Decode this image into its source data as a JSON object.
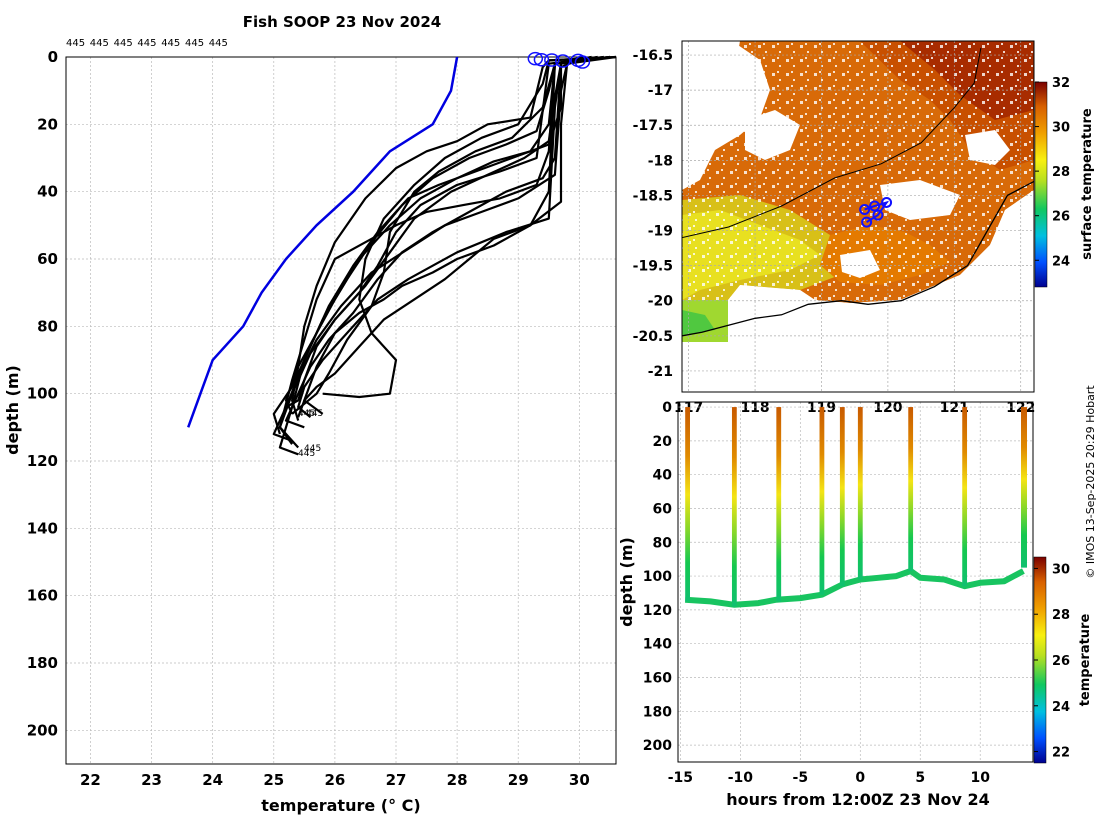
{
  "chart_data": [
    {
      "type": "line",
      "title": "Fish SOOP 23 Nov 2024",
      "xlabel": "temperature (° C)",
      "ylabel": "depth (m)",
      "xlim": [
        21.6,
        30.6
      ],
      "ylim": [
        210,
        0
      ],
      "xticks": [
        22,
        23,
        24,
        25,
        26,
        27,
        28,
        29,
        30
      ],
      "yticks": [
        0,
        20,
        40,
        60,
        80,
        100,
        120,
        140,
        160,
        180,
        200
      ],
      "grid": true,
      "top_labels": [
        "445",
        "445",
        "445",
        "445",
        "445",
        "445",
        "445"
      ],
      "profile_end_labels": [
        "445",
        "445",
        "445",
        "445"
      ],
      "reference_profile": {
        "color": "#0000e0",
        "points": [
          [
            28.0,
            0
          ],
          [
            27.9,
            10
          ],
          [
            27.6,
            20
          ],
          [
            26.9,
            28
          ],
          [
            26.3,
            40
          ],
          [
            25.7,
            50
          ],
          [
            25.2,
            60
          ],
          [
            24.8,
            70
          ],
          [
            24.5,
            80
          ],
          [
            24.0,
            90
          ],
          [
            23.8,
            100
          ],
          [
            23.6,
            110
          ]
        ]
      },
      "surface_markers": [
        [
          29.28,
          0.5
        ],
        [
          29.38,
          0.8
        ],
        [
          29.55,
          0.9
        ],
        [
          29.73,
          1.2
        ],
        [
          29.98,
          1.0
        ],
        [
          30.05,
          1.5
        ]
      ],
      "profiles": [
        [
          [
            30.6,
            0
          ],
          [
            29.5,
            1
          ],
          [
            29.4,
            3
          ],
          [
            29.2,
            18
          ],
          [
            28.5,
            20
          ],
          [
            28.0,
            25
          ],
          [
            27.5,
            28
          ],
          [
            27.0,
            33
          ],
          [
            26.5,
            42
          ],
          [
            26.0,
            55
          ],
          [
            25.7,
            68
          ],
          [
            25.5,
            80
          ],
          [
            25.4,
            92
          ],
          [
            25.3,
            102
          ],
          [
            25.4,
            108
          ]
        ],
        [
          [
            30.5,
            0
          ],
          [
            29.6,
            2
          ],
          [
            29.5,
            10
          ],
          [
            29.3,
            22
          ],
          [
            28.8,
            26
          ],
          [
            28.2,
            30
          ],
          [
            27.6,
            36
          ],
          [
            27.1,
            44
          ],
          [
            26.6,
            55
          ],
          [
            26.2,
            66
          ],
          [
            25.8,
            78
          ],
          [
            25.5,
            90
          ],
          [
            25.3,
            104
          ],
          [
            25.1,
            116
          ],
          [
            25.4,
            118
          ]
        ],
        [
          [
            30.4,
            0
          ],
          [
            29.7,
            2
          ],
          [
            29.6,
            12
          ],
          [
            29.5,
            25
          ],
          [
            29.1,
            30
          ],
          [
            28.5,
            35
          ],
          [
            27.9,
            40
          ],
          [
            27.3,
            48
          ],
          [
            26.9,
            58
          ],
          [
            26.5,
            68
          ],
          [
            26.0,
            78
          ],
          [
            25.6,
            88
          ],
          [
            25.3,
            100
          ],
          [
            25.1,
            110
          ],
          [
            25.3,
            115
          ]
        ],
        [
          [
            30.3,
            0
          ],
          [
            29.8,
            2
          ],
          [
            29.7,
            10
          ],
          [
            29.6,
            35
          ],
          [
            29.0,
            42
          ],
          [
            28.4,
            46
          ],
          [
            27.8,
            50
          ],
          [
            27.2,
            57
          ],
          [
            26.6,
            64
          ],
          [
            26.1,
            74
          ],
          [
            25.7,
            84
          ],
          [
            25.4,
            95
          ],
          [
            25.2,
            104
          ],
          [
            25.0,
            112
          ],
          [
            25.3,
            114
          ]
        ],
        [
          [
            30.2,
            0
          ],
          [
            29.7,
            2
          ],
          [
            29.6,
            15
          ],
          [
            29.5,
            48
          ],
          [
            28.8,
            52
          ],
          [
            28.0,
            58
          ],
          [
            27.6,
            62
          ],
          [
            27.2,
            66
          ],
          [
            26.7,
            72
          ],
          [
            26.3,
            80
          ],
          [
            25.8,
            90
          ],
          [
            25.5,
            98
          ],
          [
            25.4,
            104
          ],
          [
            25.6,
            107
          ]
        ],
        [
          [
            30.1,
            0
          ],
          [
            29.6,
            2
          ],
          [
            29.5,
            20
          ],
          [
            29.2,
            28
          ],
          [
            28.6,
            31
          ],
          [
            28.0,
            36
          ],
          [
            27.4,
            42
          ],
          [
            26.9,
            50
          ],
          [
            26.4,
            60
          ],
          [
            26.0,
            72
          ],
          [
            25.7,
            82
          ],
          [
            25.4,
            92
          ],
          [
            25.2,
            102
          ],
          [
            25.3,
            106
          ]
        ],
        [
          [
            30.6,
            0
          ],
          [
            29.5,
            1
          ],
          [
            29.4,
            8
          ],
          [
            29.0,
            20
          ],
          [
            28.4,
            24
          ],
          [
            27.8,
            30
          ],
          [
            27.3,
            38
          ],
          [
            26.8,
            48
          ],
          [
            26.5,
            60
          ],
          [
            26.4,
            72
          ],
          [
            26.6,
            82
          ],
          [
            27.0,
            90
          ],
          [
            26.9,
            100
          ],
          [
            26.4,
            101
          ],
          [
            25.8,
            100
          ]
        ],
        [
          [
            30.5,
            0
          ],
          [
            29.6,
            2
          ],
          [
            29.4,
            15
          ],
          [
            28.9,
            24
          ],
          [
            28.3,
            28
          ],
          [
            27.7,
            34
          ],
          [
            27.3,
            40
          ],
          [
            26.9,
            52
          ],
          [
            26.8,
            64
          ],
          [
            26.6,
            74
          ],
          [
            26.2,
            84
          ],
          [
            25.9,
            94
          ],
          [
            25.7,
            100
          ],
          [
            25.5,
            103
          ],
          [
            25.3,
            106
          ]
        ],
        [
          [
            30.4,
            0
          ],
          [
            29.5,
            2
          ],
          [
            29.3,
            30
          ],
          [
            28.7,
            34
          ],
          [
            28.0,
            38
          ],
          [
            27.4,
            44
          ],
          [
            27.0,
            52
          ],
          [
            26.7,
            62
          ],
          [
            26.4,
            70
          ],
          [
            26.0,
            78
          ],
          [
            25.7,
            86
          ],
          [
            25.5,
            96
          ],
          [
            25.4,
            102
          ],
          [
            25.2,
            104
          ]
        ],
        [
          [
            30.3,
            0
          ],
          [
            29.6,
            2
          ],
          [
            29.5,
            28
          ],
          [
            29.3,
            38
          ],
          [
            28.7,
            42
          ],
          [
            28.1,
            44
          ],
          [
            27.5,
            46
          ],
          [
            27.0,
            50
          ],
          [
            26.6,
            54
          ],
          [
            26.0,
            60
          ],
          [
            25.7,
            72
          ],
          [
            25.5,
            84
          ],
          [
            25.3,
            96
          ],
          [
            25.1,
            110
          ],
          [
            25.4,
            116
          ]
        ],
        [
          [
            30.2,
            0
          ],
          [
            29.6,
            2
          ],
          [
            29.5,
            40
          ],
          [
            29.2,
            50
          ],
          [
            28.6,
            54
          ],
          [
            28.2,
            60
          ],
          [
            27.8,
            66
          ],
          [
            27.3,
            72
          ],
          [
            26.8,
            78
          ],
          [
            26.4,
            86
          ],
          [
            26.0,
            94
          ],
          [
            25.7,
            98
          ],
          [
            25.5,
            102
          ],
          [
            25.4,
            107
          ]
        ],
        [
          [
            30.1,
            0
          ],
          [
            29.7,
            3
          ],
          [
            29.7,
            15
          ],
          [
            29.5,
            26
          ],
          [
            28.9,
            30
          ],
          [
            28.3,
            34
          ],
          [
            27.7,
            38
          ],
          [
            27.2,
            42
          ],
          [
            26.7,
            52
          ],
          [
            26.3,
            62
          ],
          [
            25.9,
            74
          ],
          [
            25.6,
            86
          ],
          [
            25.3,
            98
          ],
          [
            25.0,
            106
          ],
          [
            25.1,
            112
          ]
        ],
        [
          [
            30.6,
            0
          ],
          [
            29.8,
            2
          ],
          [
            29.7,
            20
          ],
          [
            29.7,
            43
          ],
          [
            29.2,
            50
          ],
          [
            28.6,
            56
          ],
          [
            28.0,
            60
          ],
          [
            27.6,
            64
          ],
          [
            27.1,
            68
          ],
          [
            26.8,
            72
          ],
          [
            26.4,
            76
          ],
          [
            26.0,
            82
          ],
          [
            25.7,
            92
          ],
          [
            25.5,
            102
          ],
          [
            25.8,
            106
          ]
        ],
        [
          [
            30.5,
            0
          ],
          [
            29.7,
            2
          ],
          [
            29.6,
            30
          ],
          [
            29.4,
            36
          ],
          [
            28.8,
            40
          ],
          [
            28.2,
            46
          ],
          [
            27.6,
            52
          ],
          [
            27.1,
            58
          ],
          [
            26.7,
            66
          ],
          [
            26.3,
            76
          ],
          [
            25.9,
            84
          ],
          [
            25.6,
            92
          ],
          [
            25.4,
            100
          ],
          [
            25.2,
            108
          ],
          [
            25.5,
            110
          ]
        ]
      ]
    },
    {
      "type": "heatmap",
      "title": "",
      "xlim": [
        116.9,
        122.2
      ],
      "ylim": [
        -21.3,
        -16.3
      ],
      "xticks": [
        117,
        118,
        119,
        120,
        121,
        122
      ],
      "xtick_labels": [
        "117",
        "118",
        "119",
        "120",
        "121",
        "122"
      ],
      "yticks": [
        -16.5,
        -17,
        -17.5,
        -18,
        -18.5,
        -19,
        -19.5,
        -20,
        -20.5,
        -21
      ],
      "grid": true,
      "colorbar_label": "surface temperature",
      "colorbar_range": [
        22.8,
        32
      ],
      "colorbar_ticks": [
        24,
        26,
        28,
        30,
        32
      ],
      "track_points": [
        [
          119.65,
          -18.7
        ],
        [
          119.8,
          -18.65
        ],
        [
          119.98,
          -18.6
        ],
        [
          119.85,
          -18.78
        ],
        [
          119.68,
          -18.88
        ]
      ],
      "coastline": [
        [
          116.9,
          -20.5
        ],
        [
          117.2,
          -20.45
        ],
        [
          117.6,
          -20.35
        ],
        [
          118.0,
          -20.25
        ],
        [
          118.4,
          -20.2
        ],
        [
          118.8,
          -20.05
        ],
        [
          119.3,
          -20.0
        ],
        [
          119.7,
          -20.05
        ],
        [
          120.2,
          -20.0
        ],
        [
          120.7,
          -19.8
        ],
        [
          121.2,
          -19.5
        ],
        [
          121.5,
          -19.0
        ],
        [
          121.8,
          -18.5
        ],
        [
          122.2,
          -18.3
        ]
      ],
      "contour_200m": [
        [
          116.9,
          -19.1
        ],
        [
          117.6,
          -18.95
        ],
        [
          118.4,
          -18.65
        ],
        [
          119.2,
          -18.25
        ],
        [
          119.9,
          -18.05
        ],
        [
          120.5,
          -17.75
        ],
        [
          121.0,
          -17.25
        ],
        [
          121.3,
          -16.9
        ],
        [
          121.4,
          -16.4
        ]
      ]
    },
    {
      "type": "heatmap",
      "title": "",
      "xlabel": "hours from 12:00Z 23 Nov 24",
      "ylabel": "depth (m)",
      "xlim": [
        -15.2,
        14.4
      ],
      "ylim": [
        210,
        -3
      ],
      "xticks": [
        -15,
        -10,
        -5,
        0,
        5,
        10
      ],
      "yticks": [
        0,
        20,
        40,
        60,
        80,
        100,
        120,
        140,
        160,
        180,
        200
      ],
      "grid": true,
      "colorbar_label": "temperature",
      "colorbar_range": [
        21.5,
        30.5
      ],
      "colorbar_ticks": [
        22,
        24,
        26,
        28,
        30
      ],
      "casts": [
        {
          "t0": -14.6,
          "t1": -14.2,
          "bottom": 115
        },
        {
          "t0": -10.7,
          "t1": -10.3,
          "bottom": 118
        },
        {
          "t0": -7.0,
          "t1": -6.6,
          "bottom": 115
        },
        {
          "t0": -3.4,
          "t1": -3.0,
          "bottom": 111
        },
        {
          "t0": -1.7,
          "t1": -1.3,
          "bottom": 106
        },
        {
          "t0": -0.2,
          "t1": 0.2,
          "bottom": 102
        },
        {
          "t0": 4.0,
          "t1": 4.4,
          "bottom": 97
        },
        {
          "t0": 8.5,
          "t1": 8.9,
          "bottom": 106
        },
        {
          "t0": 13.4,
          "t1": 13.9,
          "bottom": 95
        }
      ],
      "bottom_track": [
        [
          -14.6,
          114
        ],
        [
          -12.5,
          115
        ],
        [
          -10.5,
          117
        ],
        [
          -8.5,
          116
        ],
        [
          -7.0,
          114
        ],
        [
          -5.0,
          113
        ],
        [
          -3.2,
          111
        ],
        [
          -1.5,
          105
        ],
        [
          -1.0,
          104
        ],
        [
          0.0,
          102
        ],
        [
          1.5,
          101
        ],
        [
          3.0,
          100
        ],
        [
          4.2,
          97
        ],
        [
          5.0,
          101
        ],
        [
          7.0,
          102
        ],
        [
          8.7,
          106
        ],
        [
          10.0,
          104
        ],
        [
          12.0,
          103
        ],
        [
          13.6,
          97
        ]
      ]
    }
  ],
  "credit": "© IMOS 13-Sep-2025 20:29 Hobart"
}
